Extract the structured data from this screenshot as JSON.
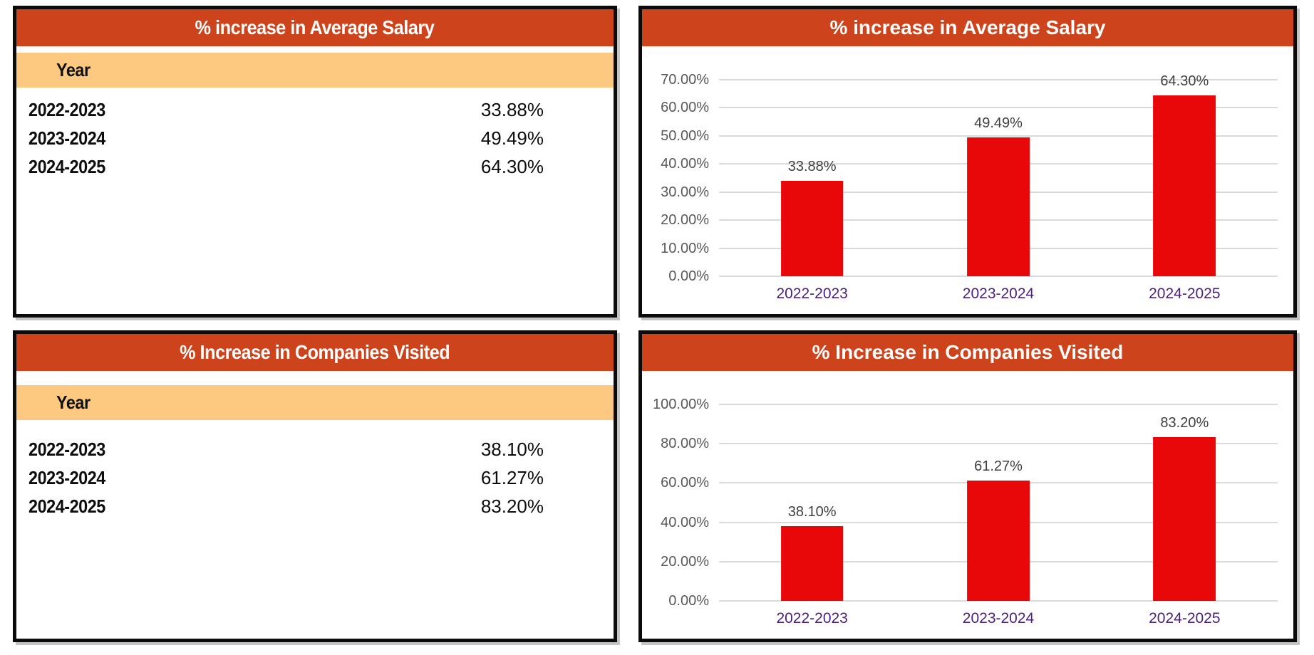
{
  "colors": {
    "panel_border": "#0b0b0b",
    "title_bar_bg": "#cd431b",
    "title_bar_text": "#ffffff",
    "year_band_bg": "#fdc880",
    "bar_fill": "#e80709",
    "gridline": "#d9d9d9",
    "y_tick_text": "#595959",
    "data_label_text": "#404040",
    "x_tick_text": "#4b2080"
  },
  "panels": {
    "salary_table": {
      "title": "% increase in Average Salary",
      "header": "Year",
      "rows": [
        {
          "year": "2022-2023",
          "value": "33.88%"
        },
        {
          "year": "2023-2024",
          "value": "49.49%"
        },
        {
          "year": "2024-2025",
          "value": "64.30%"
        }
      ]
    },
    "companies_table": {
      "title": "% Increase in Companies Visited",
      "header": "Year",
      "rows": [
        {
          "year": "2022-2023",
          "value": "38.10%"
        },
        {
          "year": "2023-2024",
          "value": "61.27%"
        },
        {
          "year": "2024-2025",
          "value": "83.20%"
        }
      ]
    }
  },
  "chart_data": [
    {
      "type": "bar",
      "title": "% increase in Average Salary",
      "categories": [
        "2022-2023",
        "2023-2024",
        "2024-2025"
      ],
      "values": [
        33.88,
        49.49,
        64.3
      ],
      "value_labels": [
        "33.88%",
        "49.49%",
        "64.30%"
      ],
      "xlabel": "",
      "ylabel": "",
      "ylim": [
        0,
        70
      ],
      "ytick_step": 10,
      "ytick_labels": [
        "0.00%",
        "10.00%",
        "20.00%",
        "30.00%",
        "40.00%",
        "50.00%",
        "60.00%",
        "70.00%"
      ],
      "grid": true,
      "legend": "none",
      "bar_color": "#e80709"
    },
    {
      "type": "bar",
      "title": "% Increase in Companies Visited",
      "categories": [
        "2022-2023",
        "2023-2024",
        "2024-2025"
      ],
      "values": [
        38.1,
        61.27,
        83.2
      ],
      "value_labels": [
        "38.10%",
        "61.27%",
        "83.20%"
      ],
      "xlabel": "",
      "ylabel": "",
      "ylim": [
        0,
        100
      ],
      "ytick_step": 20,
      "ytick_labels": [
        "0.00%",
        "20.00%",
        "40.00%",
        "60.00%",
        "80.00%",
        "100.00%"
      ],
      "grid": true,
      "legend": "none",
      "bar_color": "#e80709"
    }
  ]
}
